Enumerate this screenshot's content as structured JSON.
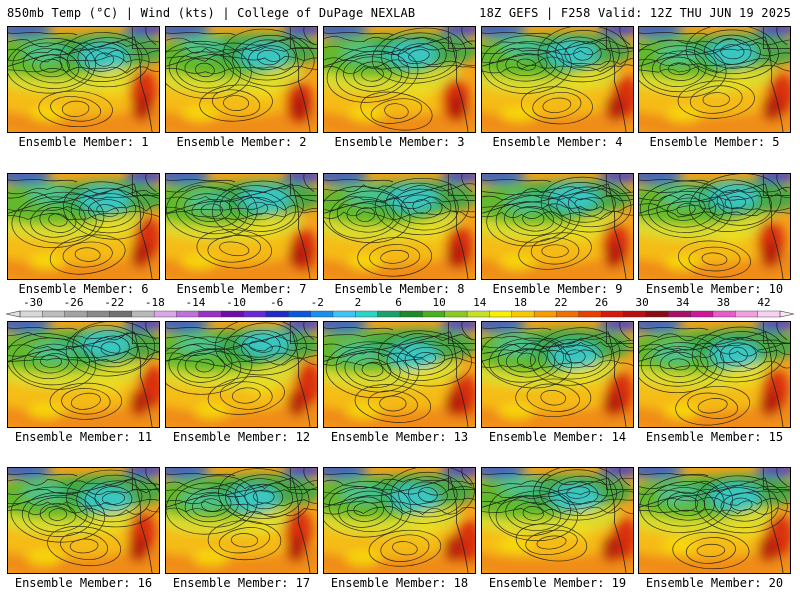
{
  "header": {
    "left_title": "850mb Temp (°C) | Wind (kts) | College of DuPage NEXLAB",
    "right_title": "18Z GEFS | F258 Valid: 12Z THU JUN 19 2025"
  },
  "colorbar": {
    "ticks": [
      "-30",
      "-26",
      "-22",
      "-18",
      "-14",
      "-10",
      "-6",
      "-2",
      "2",
      "6",
      "10",
      "14",
      "18",
      "22",
      "26",
      "30",
      "34",
      "38",
      "42"
    ],
    "colors": [
      "#d7d7d7",
      "#bdbdbd",
      "#a3a3a3",
      "#8a8a8a",
      "#717171",
      "#b8b8b8",
      "#d9a6e6",
      "#c070dc",
      "#9a30c8",
      "#6e10a8",
      "#6a2ad8",
      "#1e2cc8",
      "#0a58e0",
      "#1890f0",
      "#40c4f8",
      "#2ad4c8",
      "#1aa06a",
      "#1a8a2a",
      "#4ab020",
      "#8cc828",
      "#c8e028",
      "#f8f000",
      "#f8c800",
      "#f89c00",
      "#f07000",
      "#e84000",
      "#d81a0a",
      "#b8100e",
      "#8a0c10",
      "#a8106a",
      "#d0169a",
      "#e85cc8",
      "#f0a0e0",
      "#f8d0f0"
    ]
  },
  "panels": [
    {
      "label": "Ensemble Member: 1"
    },
    {
      "label": "Ensemble Member: 2"
    },
    {
      "label": "Ensemble Member: 3"
    },
    {
      "label": "Ensemble Member: 4"
    },
    {
      "label": "Ensemble Member: 5"
    },
    {
      "label": "Ensemble Member: 6"
    },
    {
      "label": "Ensemble Member: 7"
    },
    {
      "label": "Ensemble Member: 8"
    },
    {
      "label": "Ensemble Member: 9"
    },
    {
      "label": "Ensemble Member: 10"
    },
    {
      "label": "Ensemble Member: 11"
    },
    {
      "label": "Ensemble Member: 12"
    },
    {
      "label": "Ensemble Member: 13"
    },
    {
      "label": "Ensemble Member: 14"
    },
    {
      "label": "Ensemble Member: 15"
    },
    {
      "label": "Ensemble Member: 16"
    },
    {
      "label": "Ensemble Member: 17"
    },
    {
      "label": "Ensemble Member: 18"
    },
    {
      "label": "Ensemble Member: 19"
    },
    {
      "label": "Ensemble Member: 20"
    }
  ]
}
